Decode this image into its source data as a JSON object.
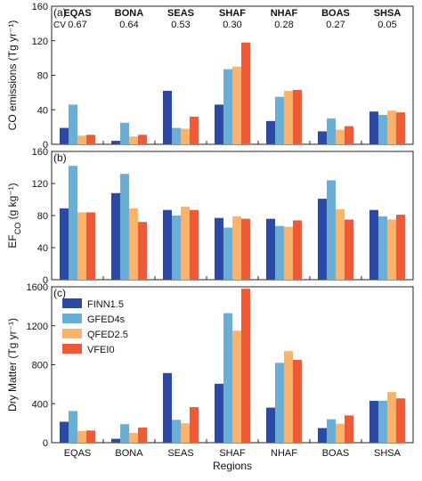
{
  "colors": {
    "FINN1.5": "#2b4aa3",
    "GFED4s": "#6aaed6",
    "QFED2.5": "#fbb36b",
    "VFEI0": "#ee5a36"
  },
  "chart_data": [
    {
      "type": "bar",
      "panel_label": "(a)",
      "ylabel": "CO emissions (Tg yr⁻¹)",
      "ylim": [
        0,
        160
      ],
      "yticks": [
        0,
        40,
        80,
        120,
        160
      ],
      "categories": [
        "EQAS",
        "BONA",
        "SEAS",
        "SHAF",
        "NHAF",
        "BOAS",
        "SHSA"
      ],
      "category_labels_top": [
        "EQAS",
        "BONA",
        "SEAS",
        "SHAF",
        "NHAF",
        "BOAS",
        "SHSA"
      ],
      "cv_label": "CV",
      "cv_values": [
        "0.67",
        "0.64",
        "0.53",
        "0.30",
        "0.28",
        "0.27",
        "0.05"
      ],
      "series": [
        {
          "name": "FINN1.5",
          "values": [
            19,
            4,
            62,
            46,
            27,
            15,
            38
          ]
        },
        {
          "name": "GFED4s",
          "values": [
            46,
            25,
            19,
            87,
            55,
            30,
            34
          ]
        },
        {
          "name": "QFED2.5",
          "values": [
            10,
            9,
            18,
            90,
            62,
            17,
            39
          ]
        },
        {
          "name": "VFEI0",
          "values": [
            11,
            11,
            32,
            118,
            63,
            21,
            37
          ]
        }
      ]
    },
    {
      "type": "bar",
      "panel_label": "(b)",
      "ylabel": "EF",
      "ylabel_sub": "CO",
      "ylabel_unit": " (g kg⁻¹)",
      "ylim": [
        0,
        160
      ],
      "yticks": [
        0,
        40,
        80,
        120,
        160
      ],
      "categories": [
        "EQAS",
        "BONA",
        "SEAS",
        "SHAF",
        "NHAF",
        "BOAS",
        "SHSA"
      ],
      "series": [
        {
          "name": "FINN1.5",
          "values": [
            89,
            108,
            87,
            77,
            76,
            101,
            87
          ]
        },
        {
          "name": "GFED4s",
          "values": [
            142,
            132,
            80,
            65,
            67,
            124,
            79
          ]
        },
        {
          "name": "QFED2.5",
          "values": [
            84,
            89,
            91,
            79,
            66,
            88,
            75
          ]
        },
        {
          "name": "VFEI0",
          "values": [
            84,
            72,
            87,
            76,
            74,
            75,
            81
          ]
        }
      ]
    },
    {
      "type": "bar",
      "panel_label": "(c)",
      "ylabel": "Dry Matter (Tg yr⁻¹)",
      "xlabel": "Regions",
      "ylim": [
        0,
        1600
      ],
      "yticks": [
        0,
        400,
        800,
        1200,
        1600
      ],
      "categories": [
        "EQAS",
        "BONA",
        "SEAS",
        "SHAF",
        "NHAF",
        "BOAS",
        "SHSA"
      ],
      "legend": [
        "FINN1.5",
        "GFED4s",
        "QFED2.5",
        "VFEI0"
      ],
      "legend_position": "top-left",
      "series": [
        {
          "name": "FINN1.5",
          "values": [
            215,
            40,
            715,
            605,
            360,
            150,
            430
          ]
        },
        {
          "name": "GFED4s",
          "values": [
            325,
            190,
            235,
            1330,
            820,
            240,
            430
          ]
        },
        {
          "name": "QFED2.5",
          "values": [
            120,
            100,
            200,
            1150,
            940,
            195,
            520
          ]
        },
        {
          "name": "VFEI0",
          "values": [
            125,
            155,
            365,
            1580,
            850,
            280,
            455
          ]
        }
      ]
    }
  ]
}
